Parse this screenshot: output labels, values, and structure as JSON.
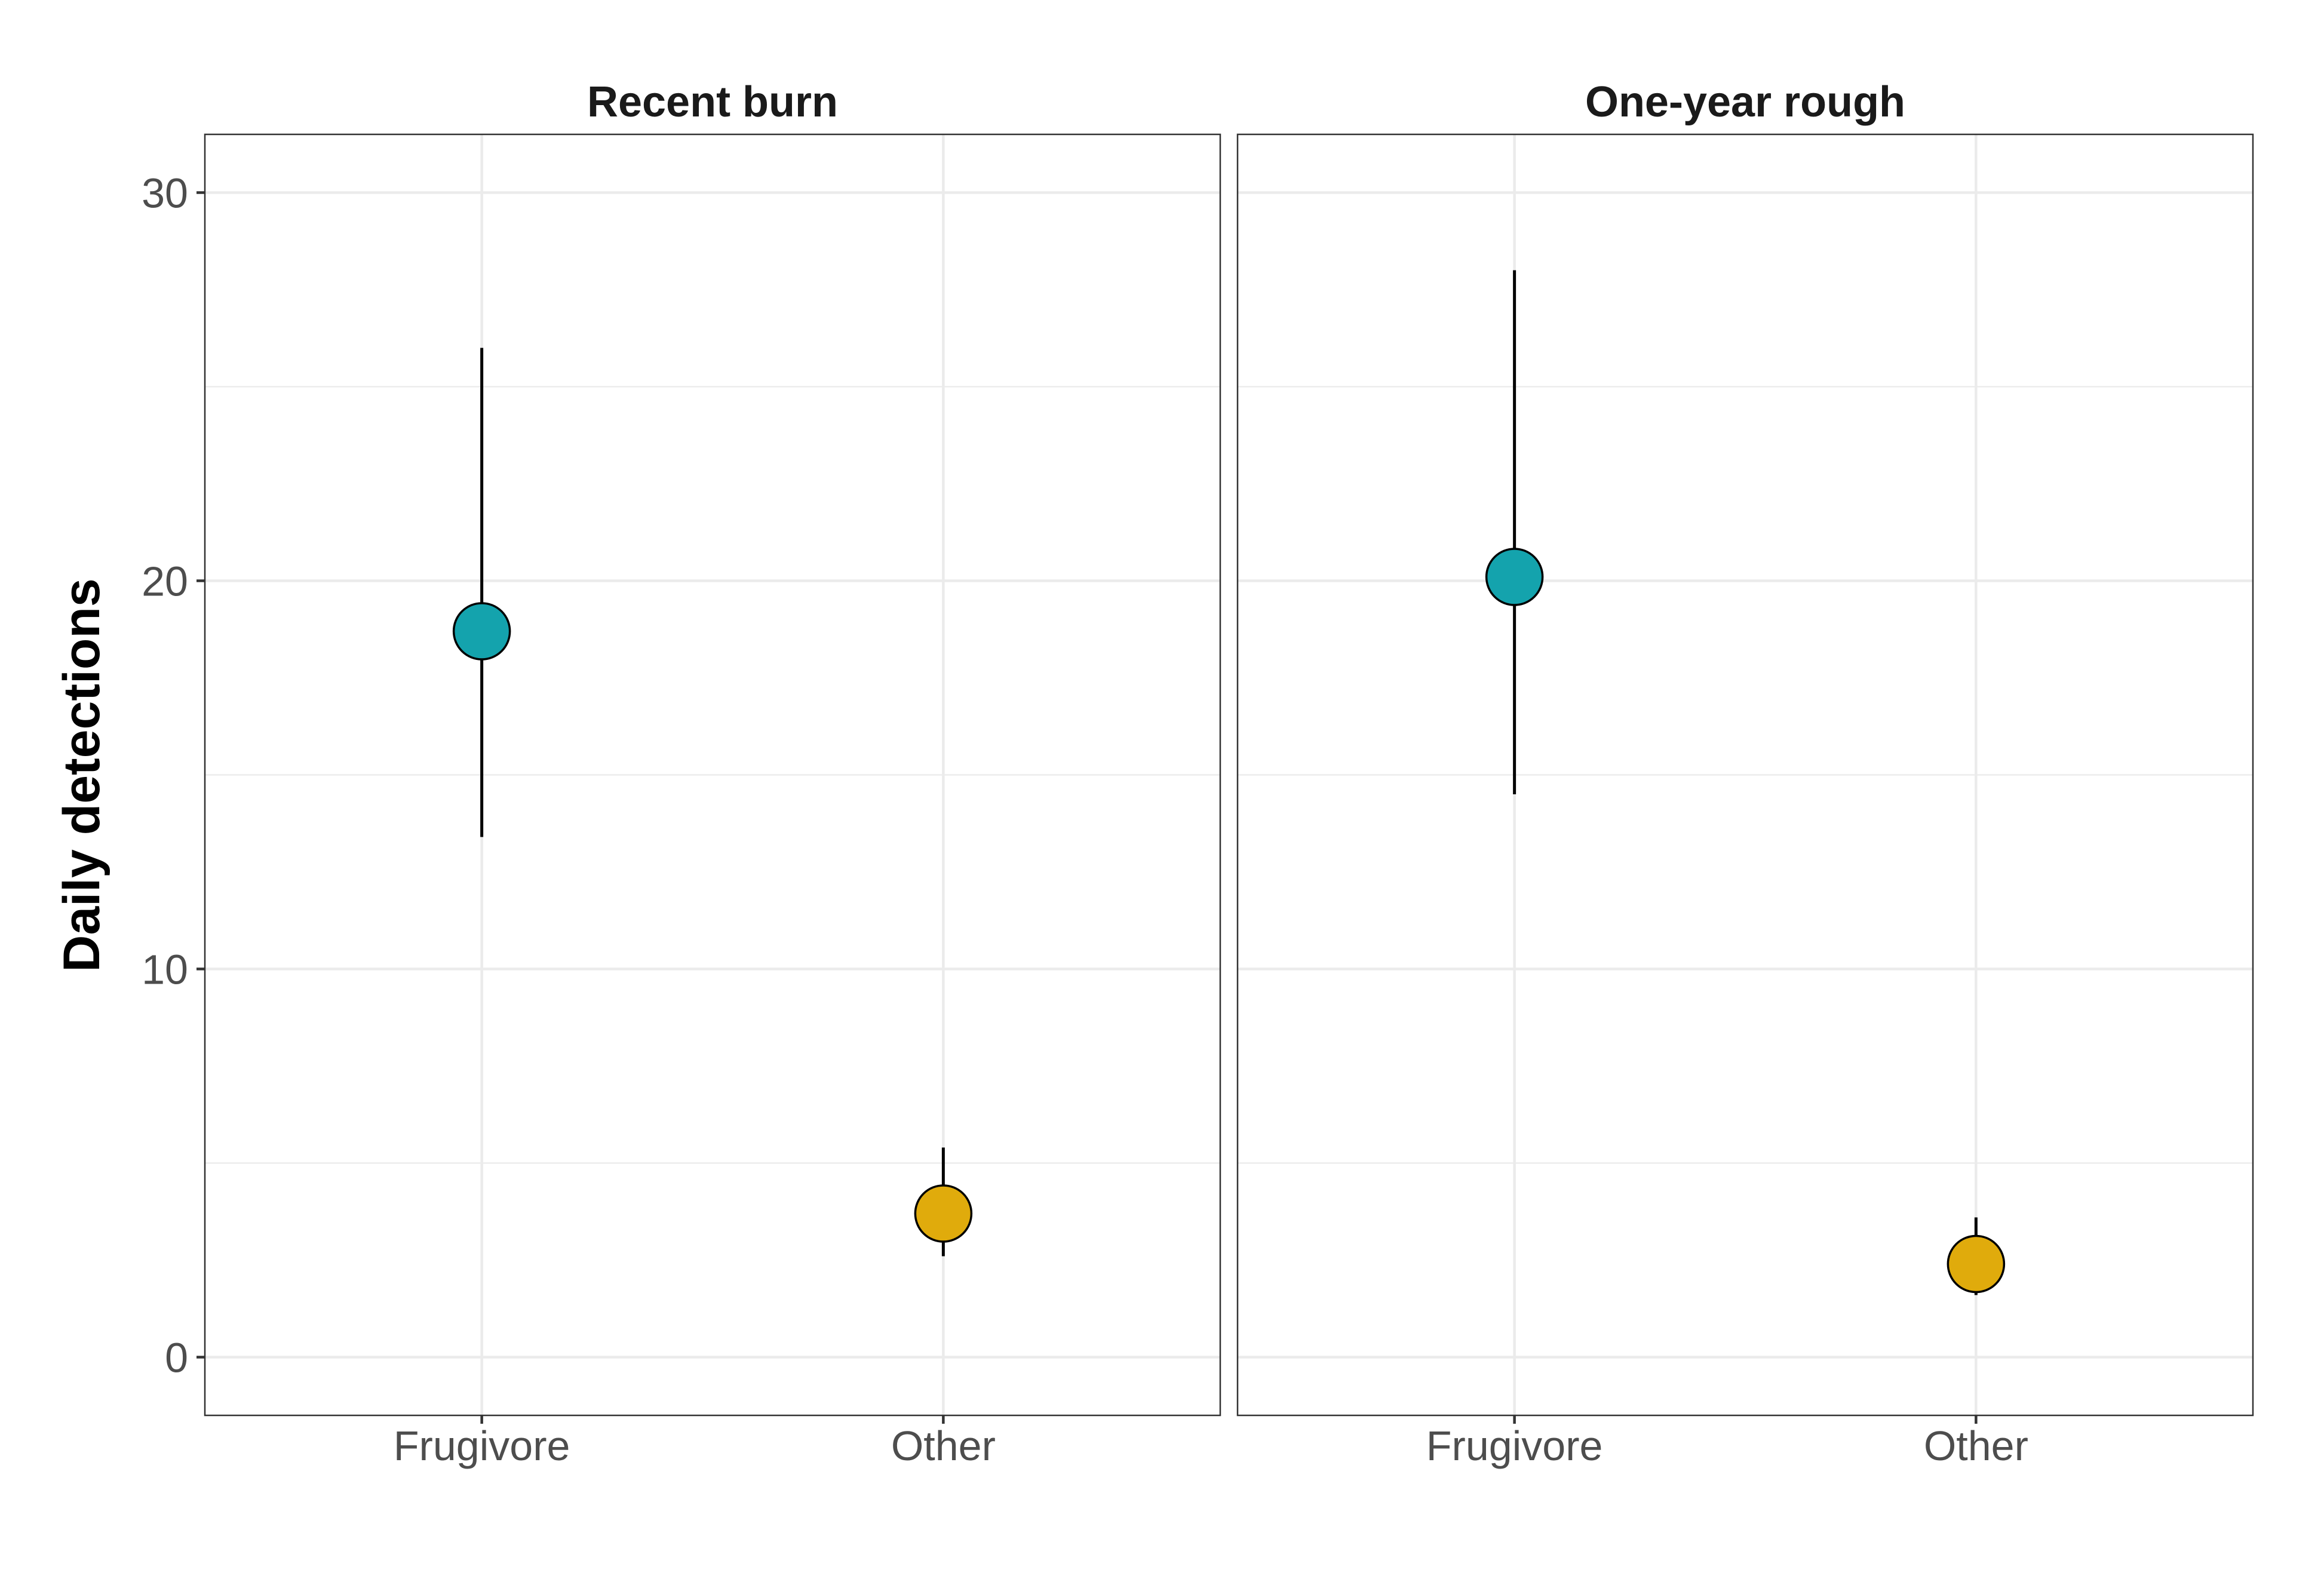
{
  "chart_data": {
    "type": "scatter",
    "ylabel": "Daily detections",
    "xlabel": "",
    "ylim": [
      -1.5,
      31.5
    ],
    "y_ticks": [
      0,
      10,
      20,
      30
    ],
    "categories": [
      "Frugivore",
      "Other"
    ],
    "colors": {
      "Frugivore": "#14a3ad",
      "Other": "#e0ab0c"
    },
    "grid": true,
    "legend": "none",
    "panels": [
      {
        "title": "Recent burn",
        "points": [
          {
            "category": "Frugivore",
            "y": 18.7,
            "ymin": 13.4,
            "ymax": 26.0
          },
          {
            "category": "Other",
            "y": 3.7,
            "ymin": 2.6,
            "ymax": 5.4
          }
        ]
      },
      {
        "title": "One-year rough",
        "points": [
          {
            "category": "Frugivore",
            "y": 20.1,
            "ymin": 14.5,
            "ymax": 28.0
          },
          {
            "category": "Other",
            "y": 2.4,
            "ymin": 1.6,
            "ymax": 3.6
          }
        ]
      }
    ]
  }
}
